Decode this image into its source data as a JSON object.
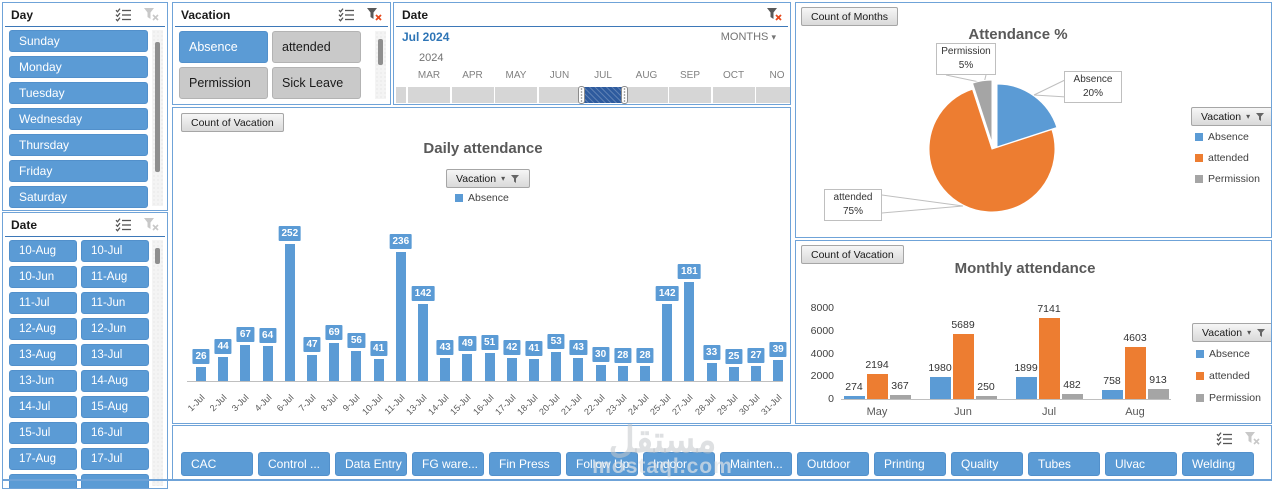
{
  "day_slicer": {
    "title": "Day",
    "items": [
      "Sunday",
      "Monday",
      "Tuesday",
      "Wednesday",
      "Thursday",
      "Friday",
      "Saturday"
    ]
  },
  "date_slicer": {
    "title": "Date",
    "items": [
      "10-Aug",
      "10-Jul",
      "10-Jun",
      "11-Aug",
      "11-Jul",
      "11-Jun",
      "12-Aug",
      "12-Jun",
      "13-Aug",
      "13-Jul",
      "13-Jun",
      "14-Aug",
      "14-Jul",
      "15-Aug",
      "15-Jul",
      "16-Jul",
      "17-Aug",
      "17-Jul"
    ]
  },
  "vacation_slicer": {
    "title": "Vacation",
    "items": [
      {
        "label": "Absence",
        "selected": true
      },
      {
        "label": "attended",
        "selected": false
      },
      {
        "label": "Permission",
        "selected": false
      },
      {
        "label": "Sick Leave",
        "selected": false
      }
    ]
  },
  "timeline": {
    "title": "Date",
    "selection_label": "Jul 2024",
    "granularity": "MONTHS",
    "year_label": "2024",
    "months": [
      "MAR",
      "APR",
      "MAY",
      "JUN",
      "JUL",
      "AUG",
      "SEP",
      "OCT",
      "NO"
    ],
    "selected_month": "JUL"
  },
  "department_slicer": {
    "items": [
      "CAC",
      "Control ...",
      "Data Entry",
      "FG ware...",
      "Fin Press",
      "Follow Up",
      "Indoor",
      "Mainten...",
      "Outdoor",
      "Printing",
      "Quality",
      "Tubes",
      "Ulvac",
      "Welding"
    ]
  },
  "field_buttons": {
    "count_of_vacation": "Count of Vacation",
    "count_of_months": "Count of Months",
    "vacation_filter": "Vacation"
  },
  "colors": {
    "absence": "#5B9BD5",
    "attended": "#ED7D31",
    "permission": "#A5A5A5"
  },
  "watermark": {
    "arabic": "مستقل",
    "domain": "mostaql.com"
  },
  "chart_data": [
    {
      "id": "daily",
      "type": "bar",
      "title": "Daily attendance",
      "legend": [
        "Absence"
      ],
      "legend_position": "top",
      "grid": false,
      "categories": [
        "1-Jul",
        "2-Jul",
        "3-Jul",
        "4-Jul",
        "6-Jul",
        "7-Jul",
        "8-Jul",
        "9-Jul",
        "10-Jul",
        "11-Jul",
        "13-Jul",
        "14-Jul",
        "15-Jul",
        "16-Jul",
        "17-Jul",
        "18-Jul",
        "20-Jul",
        "21-Jul",
        "22-Jul",
        "23-Jul",
        "24-Jul",
        "25-Jul",
        "27-Jul",
        "28-Jul",
        "29-Jul",
        "30-Jul",
        "31-Jul"
      ],
      "series": [
        {
          "name": "Absence",
          "values": [
            26,
            44,
            67,
            64,
            252,
            47,
            69,
            56,
            41,
            236,
            142,
            43,
            49,
            51,
            42,
            41,
            53,
            43,
            30,
            28,
            28,
            142,
            181,
            33,
            25,
            27,
            39
          ]
        }
      ]
    },
    {
      "id": "attendance_pct",
      "type": "pie",
      "title": "Attendance %",
      "labels": [
        "Absence",
        "attended",
        "Permission"
      ],
      "values": [
        20,
        75,
        5
      ],
      "value_format": "percent",
      "legend": [
        "Absence",
        "attended",
        "Permission"
      ],
      "legend_position": "right",
      "callouts": [
        {
          "label": "Permission",
          "value": "5%"
        },
        {
          "label": "Absence",
          "value": "20%"
        },
        {
          "label": "attended",
          "value": "75%"
        }
      ]
    },
    {
      "id": "monthly",
      "type": "bar",
      "title": "Monthly attendance",
      "categories": [
        "May",
        "Jun",
        "Jul",
        "Aug"
      ],
      "series": [
        {
          "name": "Absence",
          "values": [
            274,
            1980,
            1899,
            758
          ]
        },
        {
          "name": "attended",
          "values": [
            2194,
            5689,
            7141,
            4603
          ]
        },
        {
          "name": "Permission",
          "values": [
            367,
            250,
            482,
            913
          ]
        }
      ],
      "ylim": [
        0,
        8000
      ],
      "yticks": [
        0,
        2000,
        4000,
        6000,
        8000
      ],
      "legend": [
        "Absence",
        "attended",
        "Permission"
      ],
      "legend_position": "right",
      "grid": false
    }
  ]
}
